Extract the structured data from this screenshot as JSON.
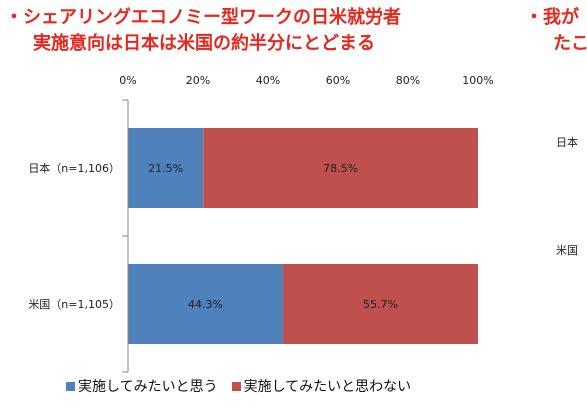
{
  "headline": {
    "line1": "・シェアリングエコノミー型ワークの日米就労者",
    "line2": "実施意向は日本は米国の約半分にとどまる"
  },
  "headline_right": {
    "line1": "・我が",
    "line2": "たこ"
  },
  "side_labels": [
    "日本",
    "米国"
  ],
  "colors": {
    "series1": "#4f81bd",
    "series2": "#c0504d"
  },
  "chart_data": {
    "type": "bar",
    "orientation": "horizontal",
    "stacked": true,
    "categories": [
      "日本（n=1,106）",
      "米国（n=1,105）"
    ],
    "series": [
      {
        "name": "実施してみたいと思う",
        "values": [
          21.5,
          44.3
        ],
        "labels": [
          "21.5%",
          "44.3%"
        ]
      },
      {
        "name": "実施してみたいと思わない",
        "values": [
          78.5,
          55.7
        ],
        "labels": [
          "78.5%",
          "55.7%"
        ]
      }
    ],
    "xlim": [
      0,
      100
    ],
    "xticks": [
      "0%",
      "20%",
      "40%",
      "60%",
      "80%",
      "100%"
    ],
    "legend": "bottom",
    "grid": false
  }
}
